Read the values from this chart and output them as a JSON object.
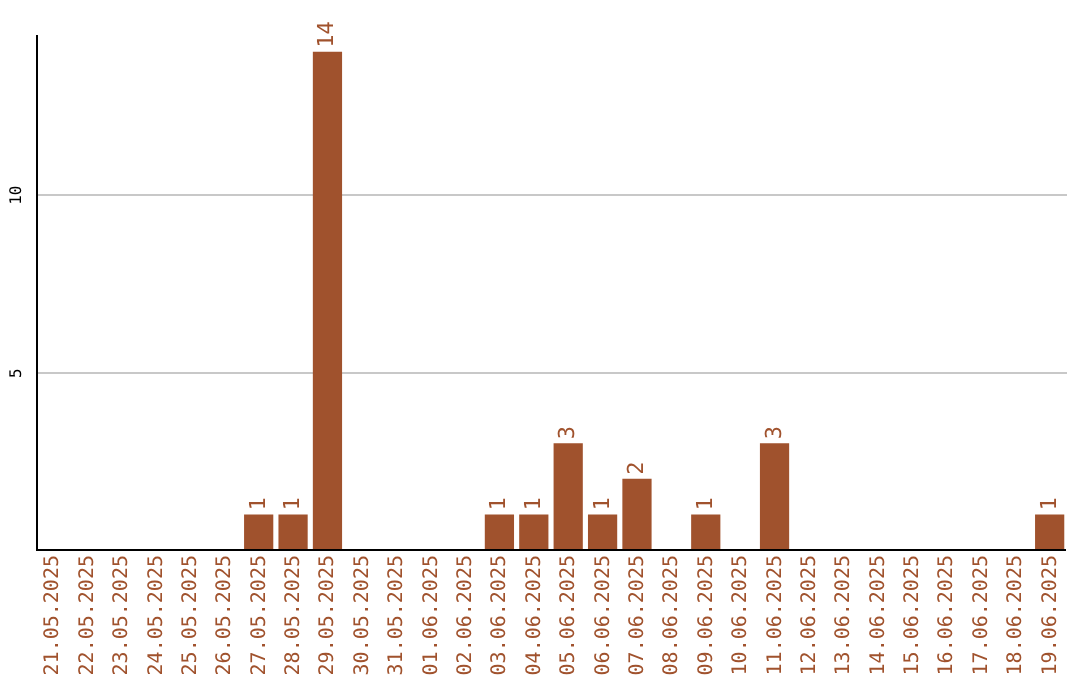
{
  "chart_data": {
    "type": "bar",
    "categories": [
      "21.05.2025",
      "22.05.2025",
      "23.05.2025",
      "24.05.2025",
      "25.05.2025",
      "26.05.2025",
      "27.05.2025",
      "28.05.2025",
      "29.05.2025",
      "30.05.2025",
      "31.05.2025",
      "01.06.2025",
      "02.06.2025",
      "03.06.2025",
      "04.06.2025",
      "05.06.2025",
      "06.06.2025",
      "07.06.2025",
      "08.06.2025",
      "09.06.2025",
      "10.06.2025",
      "11.06.2025",
      "12.06.2025",
      "13.06.2025",
      "14.06.2025",
      "15.06.2025",
      "16.06.2025",
      "17.06.2025",
      "18.06.2025",
      "19.06.2025"
    ],
    "values": [
      0,
      0,
      0,
      0,
      0,
      0,
      1,
      1,
      14,
      0,
      0,
      0,
      0,
      1,
      1,
      3,
      1,
      2,
      0,
      1,
      0,
      3,
      0,
      0,
      0,
      0,
      0,
      0,
      0,
      1
    ],
    "value_labels": [
      null,
      null,
      null,
      null,
      null,
      null,
      "1",
      "1",
      "14",
      null,
      null,
      null,
      null,
      "1",
      "1",
      "3",
      "1",
      "2",
      null,
      "1",
      null,
      "3",
      null,
      null,
      null,
      null,
      null,
      null,
      null,
      "1"
    ],
    "color": "#a0522d",
    "ylim": [
      0,
      14.5
    ],
    "yticks": [
      5,
      10
    ],
    "grid": "y"
  }
}
